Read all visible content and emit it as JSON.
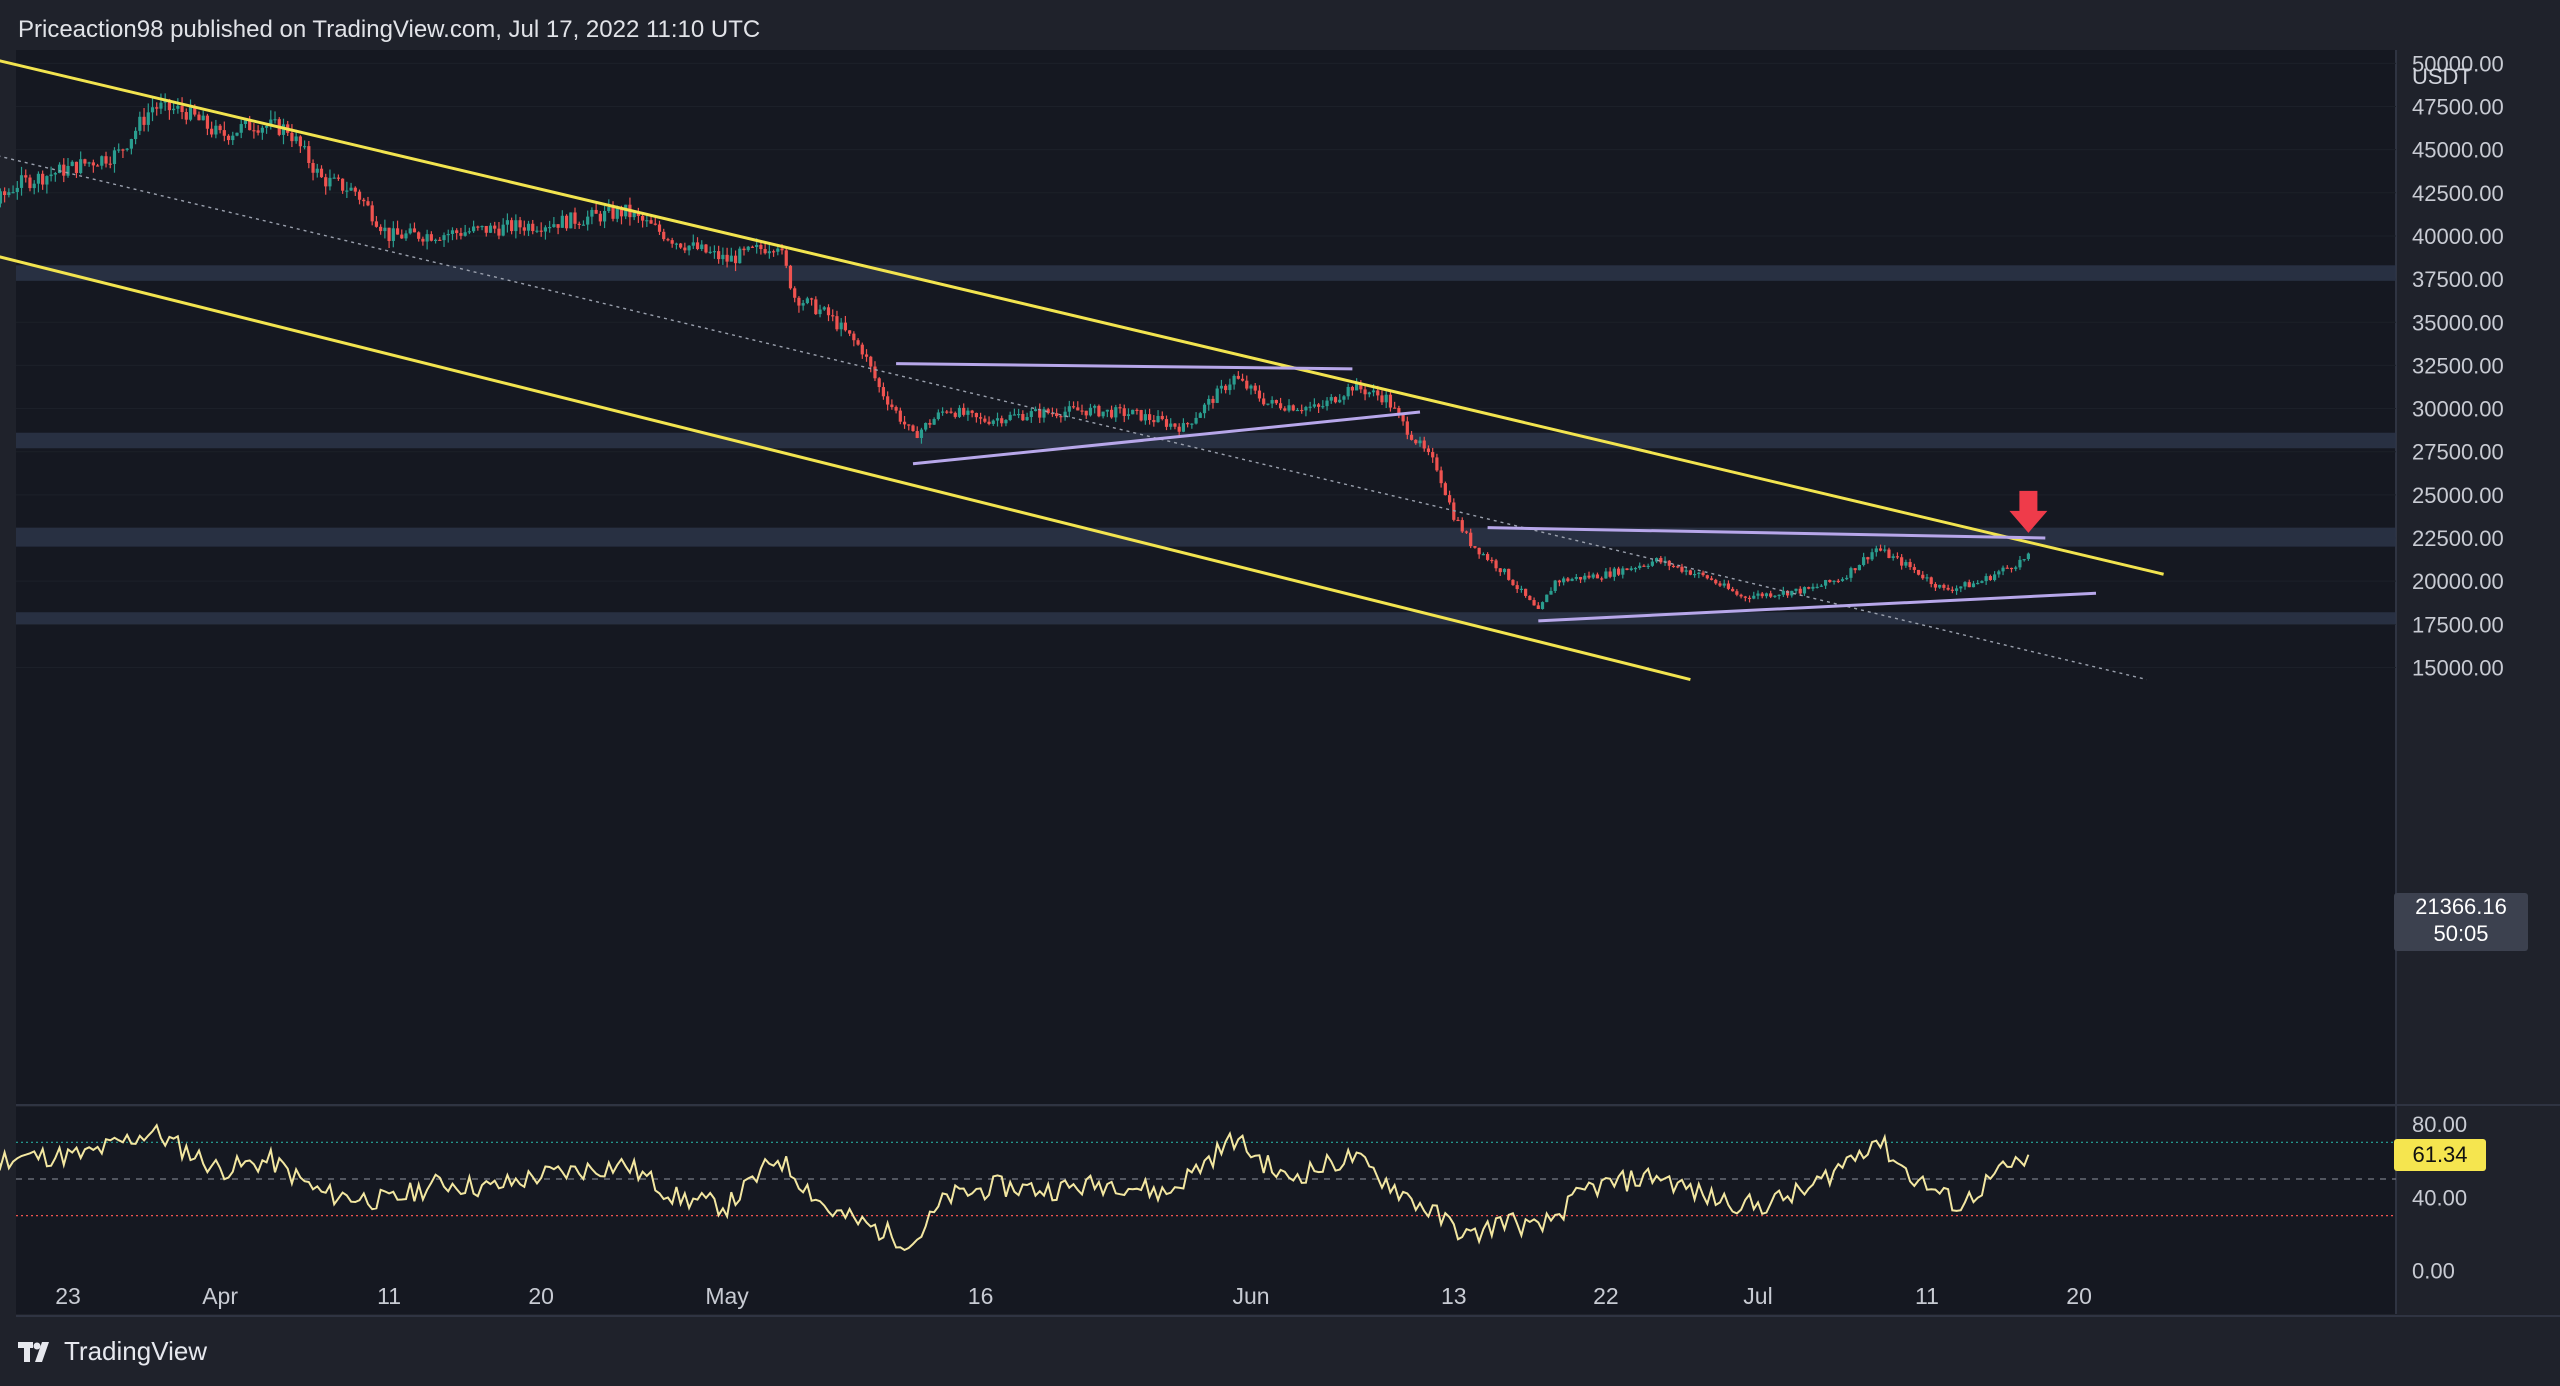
{
  "header": {
    "text": "Priceaction98 published on TradingView.com, Jul 17, 2022 11:10 UTC"
  },
  "brand": {
    "name": "TradingView",
    "icon": "tradingview-logo-icon"
  },
  "colors": {
    "background": "#1f222b",
    "pane": "#151821",
    "zone": "#2b3548",
    "channel": "#f2e44f",
    "range": "#b7a7ea",
    "up_candle": "#2a9d8f",
    "down_candle": "#ef5350",
    "rsi_line": "#f3e7a1",
    "arrow": "#ef3b4a"
  },
  "chart_data": [
    {
      "type": "candlestick",
      "symbol_currency": "USDT",
      "y_ticks": [
        "15000.00",
        "17500.00",
        "20000.00",
        "22500.00",
        "25000.00",
        "27500.00",
        "30000.00",
        "32500.00",
        "35000.00",
        "37500.00",
        "40000.00",
        "42500.00",
        "45000.00",
        "47500.00",
        "50000.00"
      ],
      "ylim": [
        14300,
        51800
      ],
      "x_ticks": [
        "23",
        "Apr",
        "11",
        "20",
        "May",
        "16",
        "Jun",
        "13",
        "22",
        "Jul",
        "11",
        "20"
      ],
      "x_tick_dates": [
        "2022-03-23",
        "2022-04-01",
        "2022-04-11",
        "2022-04-20",
        "2022-05-01",
        "2022-05-16",
        "2022-06-01",
        "2022-06-13",
        "2022-06-22",
        "2022-07-01",
        "2022-07-11",
        "2022-07-20"
      ],
      "last_price": "21366.16",
      "countdown": "50:05",
      "close_path": [
        [
          "2022-03-14",
          41500
        ],
        [
          "2022-03-17",
          40500
        ],
        [
          "2022-03-20",
          43000
        ],
        [
          "2022-03-24",
          44200
        ],
        [
          "2022-03-26",
          44800
        ],
        [
          "2022-03-28",
          47500
        ],
        [
          "2022-03-30",
          47200
        ],
        [
          "2022-04-01",
          45800
        ],
        [
          "2022-04-03",
          46500
        ],
        [
          "2022-04-05",
          46200
        ],
        [
          "2022-04-07",
          43300
        ],
        [
          "2022-04-09",
          42600
        ],
        [
          "2022-04-11",
          40000
        ],
        [
          "2022-04-14",
          40100
        ],
        [
          "2022-04-16",
          40300
        ],
        [
          "2022-04-19",
          40600
        ],
        [
          "2022-04-21",
          40800
        ],
        [
          "2022-04-25",
          41400
        ],
        [
          "2022-04-28",
          39700
        ],
        [
          "2022-05-01",
          38600
        ],
        [
          "2022-05-04",
          39600
        ],
        [
          "2022-05-05",
          36500
        ],
        [
          "2022-05-07",
          35400
        ],
        [
          "2022-05-09",
          33400
        ],
        [
          "2022-05-10",
          31200
        ],
        [
          "2022-05-12",
          28400
        ],
        [
          "2022-05-14",
          30000
        ],
        [
          "2022-05-16",
          29300
        ],
        [
          "2022-05-19",
          29700
        ],
        [
          "2022-05-22",
          29900
        ],
        [
          "2022-05-25",
          29700
        ],
        [
          "2022-05-28",
          28900
        ],
        [
          "2022-05-31",
          31800
        ],
        [
          "2022-06-02",
          30300
        ],
        [
          "2022-06-05",
          30000
        ],
        [
          "2022-06-07",
          31300
        ],
        [
          "2022-06-09",
          30600
        ],
        [
          "2022-06-10",
          29100
        ],
        [
          "2022-06-12",
          26600
        ],
        [
          "2022-06-13",
          23800
        ],
        [
          "2022-06-14",
          22200
        ],
        [
          "2022-06-16",
          20500
        ],
        [
          "2022-06-18",
          18200
        ],
        [
          "2022-06-19",
          20000
        ],
        [
          "2022-06-22",
          20400
        ],
        [
          "2022-06-25",
          21200
        ],
        [
          "2022-06-28",
          20200
        ],
        [
          "2022-06-30",
          19100
        ],
        [
          "2022-07-02",
          19300
        ],
        [
          "2022-07-04",
          19500
        ],
        [
          "2022-07-06",
          20200
        ],
        [
          "2022-07-08",
          21900
        ],
        [
          "2022-07-10",
          20800
        ],
        [
          "2022-07-12",
          19500
        ],
        [
          "2022-07-14",
          19900
        ],
        [
          "2022-07-16",
          20900
        ],
        [
          "2022-07-17",
          21366
        ]
      ],
      "zones": [
        [
          37400,
          38300
        ],
        [
          27700,
          28600
        ],
        [
          22000,
          23100
        ],
        [
          17500,
          18200
        ]
      ],
      "channel_upper": [
        [
          "2022-03-14",
          51300
        ],
        [
          "2022-07-25",
          20400
        ]
      ],
      "channel_lower": [
        [
          "2022-03-14",
          40000
        ],
        [
          "2022-06-27",
          14300
        ]
      ],
      "channel_mid": [
        [
          "2022-03-14",
          45800
        ],
        [
          "2022-07-24",
          14300
        ]
      ],
      "range_may_top": [
        [
          "2022-05-11",
          32600
        ],
        [
          "2022-06-07",
          32300
        ]
      ],
      "range_may_bottom": [
        [
          "2022-05-12",
          26800
        ],
        [
          "2022-06-11",
          29800
        ]
      ],
      "range_jun_top": [
        [
          "2022-06-15",
          23100
        ],
        [
          "2022-07-18",
          22500
        ]
      ],
      "range_jun_bottom": [
        [
          "2022-06-18",
          17700
        ],
        [
          "2022-07-21",
          19300
        ]
      ],
      "arrow_marker": [
        "2022-07-17",
        22800
      ]
    },
    {
      "type": "line",
      "indicator": "RSI",
      "y_ticks": [
        "80.00",
        "40.00",
        "0.00"
      ],
      "ylim": [
        0,
        86
      ],
      "upper_band": 70,
      "mid_band": 50,
      "lower_band": 30,
      "last_value": "61.34",
      "value_path": [
        [
          "2022-03-14",
          55
        ],
        [
          "2022-03-20",
          62
        ],
        [
          "2022-03-24",
          63
        ],
        [
          "2022-03-28",
          76
        ],
        [
          "2022-04-01",
          55
        ],
        [
          "2022-04-04",
          60
        ],
        [
          "2022-04-07",
          42
        ],
        [
          "2022-04-11",
          38
        ],
        [
          "2022-04-14",
          48
        ],
        [
          "2022-04-17",
          45
        ],
        [
          "2022-04-20",
          52
        ],
        [
          "2022-04-25",
          58
        ],
        [
          "2022-04-28",
          40
        ],
        [
          "2022-05-01",
          35
        ],
        [
          "2022-05-04",
          62
        ],
        [
          "2022-05-07",
          33
        ],
        [
          "2022-05-10",
          22
        ],
        [
          "2022-05-12",
          15
        ],
        [
          "2022-05-14",
          40
        ],
        [
          "2022-05-17",
          46
        ],
        [
          "2022-05-20",
          44
        ],
        [
          "2022-05-24",
          48
        ],
        [
          "2022-05-27",
          42
        ],
        [
          "2022-05-31",
          72
        ],
        [
          "2022-06-03",
          50
        ],
        [
          "2022-06-07",
          62
        ],
        [
          "2022-06-10",
          42
        ],
        [
          "2022-06-12",
          30
        ],
        [
          "2022-06-14",
          18
        ],
        [
          "2022-06-16",
          28
        ],
        [
          "2022-06-18",
          22
        ],
        [
          "2022-06-21",
          45
        ],
        [
          "2022-06-25",
          52
        ],
        [
          "2022-06-28",
          40
        ],
        [
          "2022-07-01",
          35
        ],
        [
          "2022-07-04",
          44
        ],
        [
          "2022-07-08",
          72
        ],
        [
          "2022-07-10",
          52
        ],
        [
          "2022-07-13",
          35
        ],
        [
          "2022-07-15",
          52
        ],
        [
          "2022-07-17",
          61
        ]
      ]
    }
  ]
}
